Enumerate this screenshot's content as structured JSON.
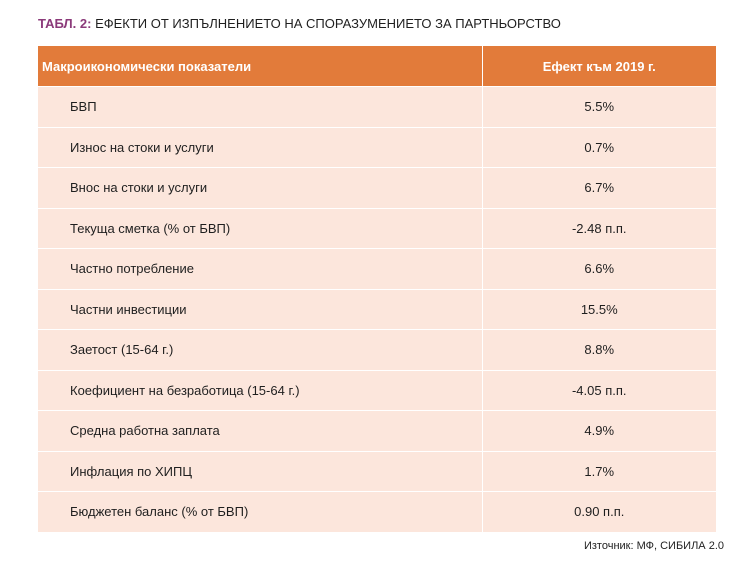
{
  "title": {
    "label": "ТАБЛ. 2:",
    "text": "ЕФЕКТИ ОТ ИЗПЪЛНЕНИЕТО НА СПОРАЗУМЕНИЕТО ЗА ПАРТНЬОРСТВО"
  },
  "colors": {
    "header_bg": "#e27b3a",
    "row_bg": "#fce6dc",
    "title_label": "#8b3a7a"
  },
  "table": {
    "headers": [
      "Макроикономически показатели",
      "Ефект към 2019 г."
    ],
    "rows": [
      {
        "indicator": "БВП",
        "value": "5.5%"
      },
      {
        "indicator": "Износ на стоки и услуги",
        "value": "0.7%"
      },
      {
        "indicator": "Внос на стоки и услуги",
        "value": "6.7%"
      },
      {
        "indicator": "Текуща сметка (% от БВП)",
        "value": "-2.48 п.п."
      },
      {
        "indicator": "Частно потребление",
        "value": "6.6%"
      },
      {
        "indicator": "Частни инвестиции",
        "value": "15.5%"
      },
      {
        "indicator": "Заетост (15-64 г.)",
        "value": "8.8%"
      },
      {
        "indicator": "Коефициент на безработица (15-64 г.)",
        "value": "-4.05 п.п."
      },
      {
        "indicator": "Средна работна заплата",
        "value": "4.9%"
      },
      {
        "indicator": "Инфлация по ХИПЦ",
        "value": "1.7%"
      },
      {
        "indicator": "Бюджетен баланс (% от БВП)",
        "value": "0.90 п.п."
      }
    ]
  },
  "source": "Източник: МФ, СИБИЛА 2.0"
}
